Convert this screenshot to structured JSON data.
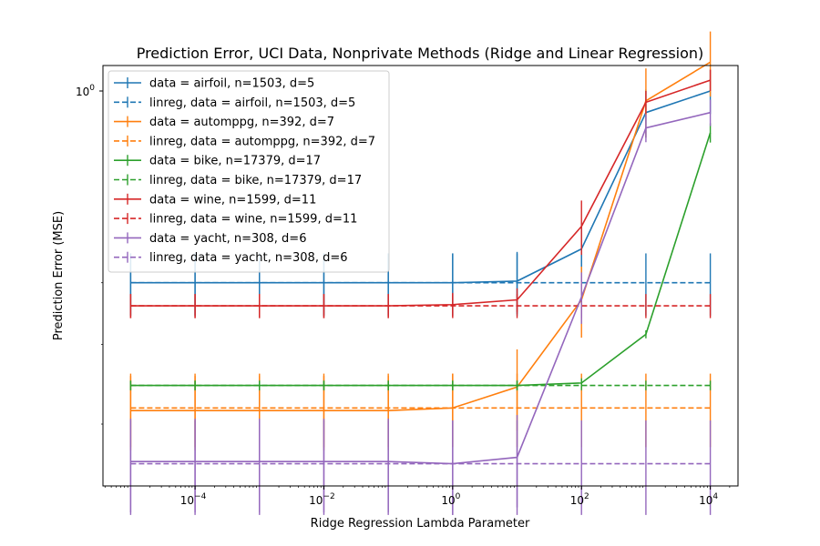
{
  "chart_data": {
    "type": "line",
    "title": "Prediction Error, UCI Data, Nonprivate Methods (Ridge and Linear Regression)",
    "xlabel": "Ridge Regression Lambda Parameter",
    "ylabel": "Prediction Error (MSE)",
    "x_scale": "log",
    "y_scale": "log",
    "xlim": [
      2.5e-06,
      2.5e-05
    ],
    "ylim_exponent": [
      -0.62,
      0.04
    ],
    "x": [
      1e-05,
      0.0001,
      0.001,
      0.01,
      0.1,
      1,
      10,
      100,
      1000,
      10000
    ],
    "x_ticks": [
      {
        "value": 0.0001,
        "base": "10",
        "exp": "−4"
      },
      {
        "value": 0.01,
        "base": "10",
        "exp": "−2"
      },
      {
        "value": 1,
        "base": "10",
        "exp": "0"
      },
      {
        "value": 100,
        "base": "10",
        "exp": "2"
      },
      {
        "value": 10000,
        "base": "10",
        "exp": "4"
      }
    ],
    "y_ticks": [
      {
        "value": 1,
        "base": "10",
        "exp": "0"
      }
    ],
    "y_minor_ticks": [
      0.3,
      0.4,
      0.5
    ],
    "legend_position": "upper-left",
    "series": [
      {
        "name": "data = airfoil, n=1503, d=5",
        "color": "#1f77b4",
        "dash": "solid",
        "values": [
          0.5,
          0.5,
          0.5,
          0.5,
          0.5,
          0.5,
          0.503,
          0.565,
          0.925,
          1.0
        ],
        "err": [
          0.056,
          0.056,
          0.056,
          0.056,
          0.056,
          0.056,
          0.056,
          0.056,
          0.08,
          0.08
        ]
      },
      {
        "name": "linreg, data = airfoil, n=1503, d=5",
        "color": "#1f77b4",
        "dash": "dashed",
        "values": [
          0.5,
          0.5,
          0.5,
          0.5,
          0.5,
          0.5,
          0.5,
          0.5,
          0.5,
          0.5
        ],
        "err": [
          0.056,
          0.056,
          0.056,
          0.056,
          0.056,
          0.056,
          0.056,
          0.056,
          0.056,
          0.056
        ]
      },
      {
        "name": "data = automppg, n=392, d=7",
        "color": "#ff7f0e",
        "dash": "solid",
        "values": [
          0.315,
          0.315,
          0.315,
          0.315,
          0.315,
          0.318,
          0.343,
          0.47,
          0.965,
          1.11
        ],
        "err": [
          0.042,
          0.042,
          0.042,
          0.042,
          0.042,
          0.042,
          0.05,
          0.06,
          0.12,
          0.13
        ]
      },
      {
        "name": "linreg, data = automppg, n=392, d=7",
        "color": "#ff7f0e",
        "dash": "dashed",
        "values": [
          0.318,
          0.318,
          0.318,
          0.318,
          0.318,
          0.318,
          0.318,
          0.318,
          0.318,
          0.318
        ],
        "err": [
          0.042,
          0.042,
          0.042,
          0.042,
          0.042,
          0.042,
          0.042,
          0.042,
          0.042,
          0.042
        ]
      },
      {
        "name": "data = bike, n=17379, d=17",
        "color": "#2ca02c",
        "dash": "solid",
        "values": [
          0.345,
          0.345,
          0.345,
          0.345,
          0.345,
          0.345,
          0.345,
          0.348,
          0.415,
          0.86
        ],
        "err": [
          0.006,
          0.006,
          0.006,
          0.006,
          0.006,
          0.006,
          0.006,
          0.006,
          0.006,
          0.03
        ]
      },
      {
        "name": "linreg, data = bike, n=17379, d=17",
        "color": "#2ca02c",
        "dash": "dashed",
        "values": [
          0.345,
          0.345,
          0.345,
          0.345,
          0.345,
          0.345,
          0.345,
          0.345,
          0.345,
          0.345
        ],
        "err": [
          0.006,
          0.006,
          0.006,
          0.006,
          0.006,
          0.006,
          0.006,
          0.006,
          0.006,
          0.006
        ]
      },
      {
        "name": "data = wine, n=1599, d=11",
        "color": "#d62728",
        "dash": "solid",
        "values": [
          0.46,
          0.46,
          0.46,
          0.46,
          0.46,
          0.462,
          0.47,
          0.613,
          0.96,
          1.04
        ],
        "err": [
          0.02,
          0.02,
          0.02,
          0.02,
          0.02,
          0.02,
          0.02,
          0.06,
          0.04,
          0.04
        ]
      },
      {
        "name": "linreg, data = wine, n=1599, d=11",
        "color": "#d62728",
        "dash": "dashed",
        "values": [
          0.46,
          0.46,
          0.46,
          0.46,
          0.46,
          0.46,
          0.46,
          0.46,
          0.46,
          0.46
        ],
        "err": [
          0.02,
          0.02,
          0.02,
          0.02,
          0.02,
          0.02,
          0.02,
          0.02,
          0.02,
          0.02
        ]
      },
      {
        "name": "data = yacht, n=308, d=6",
        "color": "#9467bd",
        "dash": "solid",
        "values": [
          0.262,
          0.262,
          0.262,
          0.262,
          0.262,
          0.26,
          0.266,
          0.475,
          0.875,
          0.925
        ],
        "err": [
          0.044,
          0.044,
          0.044,
          0.044,
          0.044,
          0.044,
          0.044,
          0.044,
          0.044,
          0.044
        ]
      },
      {
        "name": "linreg, data = yacht, n=308, d=6",
        "color": "#9467bd",
        "dash": "dashed",
        "values": [
          0.26,
          0.26,
          0.26,
          0.26,
          0.26,
          0.26,
          0.26,
          0.26,
          0.26,
          0.26
        ],
        "err": [
          0.044,
          0.044,
          0.044,
          0.044,
          0.044,
          0.044,
          0.044,
          0.044,
          0.044,
          0.044
        ]
      }
    ]
  }
}
